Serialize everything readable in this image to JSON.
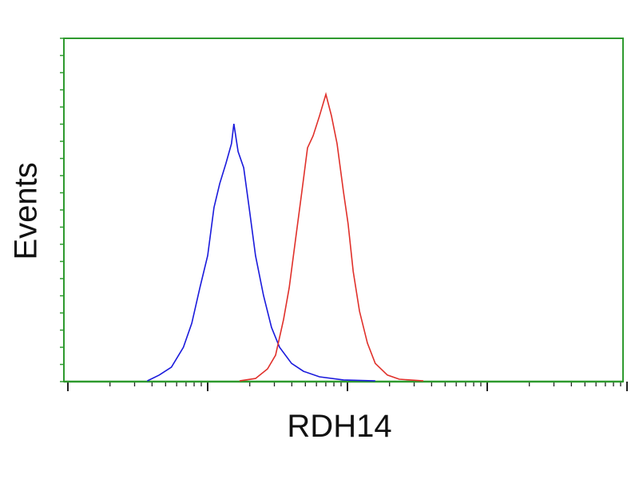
{
  "chart_data": {
    "type": "line",
    "title": "",
    "xlabel": "RDH14",
    "ylabel": "Events",
    "x_scale": "log",
    "xlim": [
      1,
      10000
    ],
    "ylim": [
      0,
      100
    ],
    "grid": false,
    "frame_color": "#2e9a2e",
    "series": [
      {
        "color": "#1a1adc",
        "x": [
          3.7,
          4.5,
          5.5,
          6.7,
          7.7,
          8.8,
          10,
          11.1,
          12.2,
          13.5,
          14.8,
          15.4,
          16.5,
          18.1,
          19.8,
          22.0,
          25.1,
          28.6,
          32.7,
          39.8,
          48.5,
          63.1,
          93.6,
          158
        ],
        "y": [
          0.2,
          1.9,
          4.2,
          10,
          17,
          27.4,
          36.7,
          50.7,
          57.7,
          63.5,
          69.3,
          75.1,
          67,
          62.3,
          50.7,
          36.7,
          25.1,
          15.8,
          10,
          5.3,
          3,
          1.4,
          0.5,
          0.2
        ]
      },
      {
        "color": "#e0302a",
        "x": [
          16.9,
          22.0,
          26.8,
          30.6,
          34.9,
          38.3,
          42.5,
          47.2,
          51.8,
          56.8,
          63.1,
          70.1,
          76.9,
          84.3,
          93.6,
          101,
          110,
          122,
          139,
          158,
          193,
          235,
          349
        ],
        "y": [
          0.2,
          0.9,
          3.7,
          7.7,
          18.1,
          27.4,
          41.4,
          55.3,
          68.1,
          71.6,
          77.4,
          83.7,
          77.4,
          69.3,
          55.3,
          46,
          32.1,
          20.5,
          11.2,
          5.3,
          1.9,
          0.7,
          0.2
        ]
      }
    ]
  }
}
